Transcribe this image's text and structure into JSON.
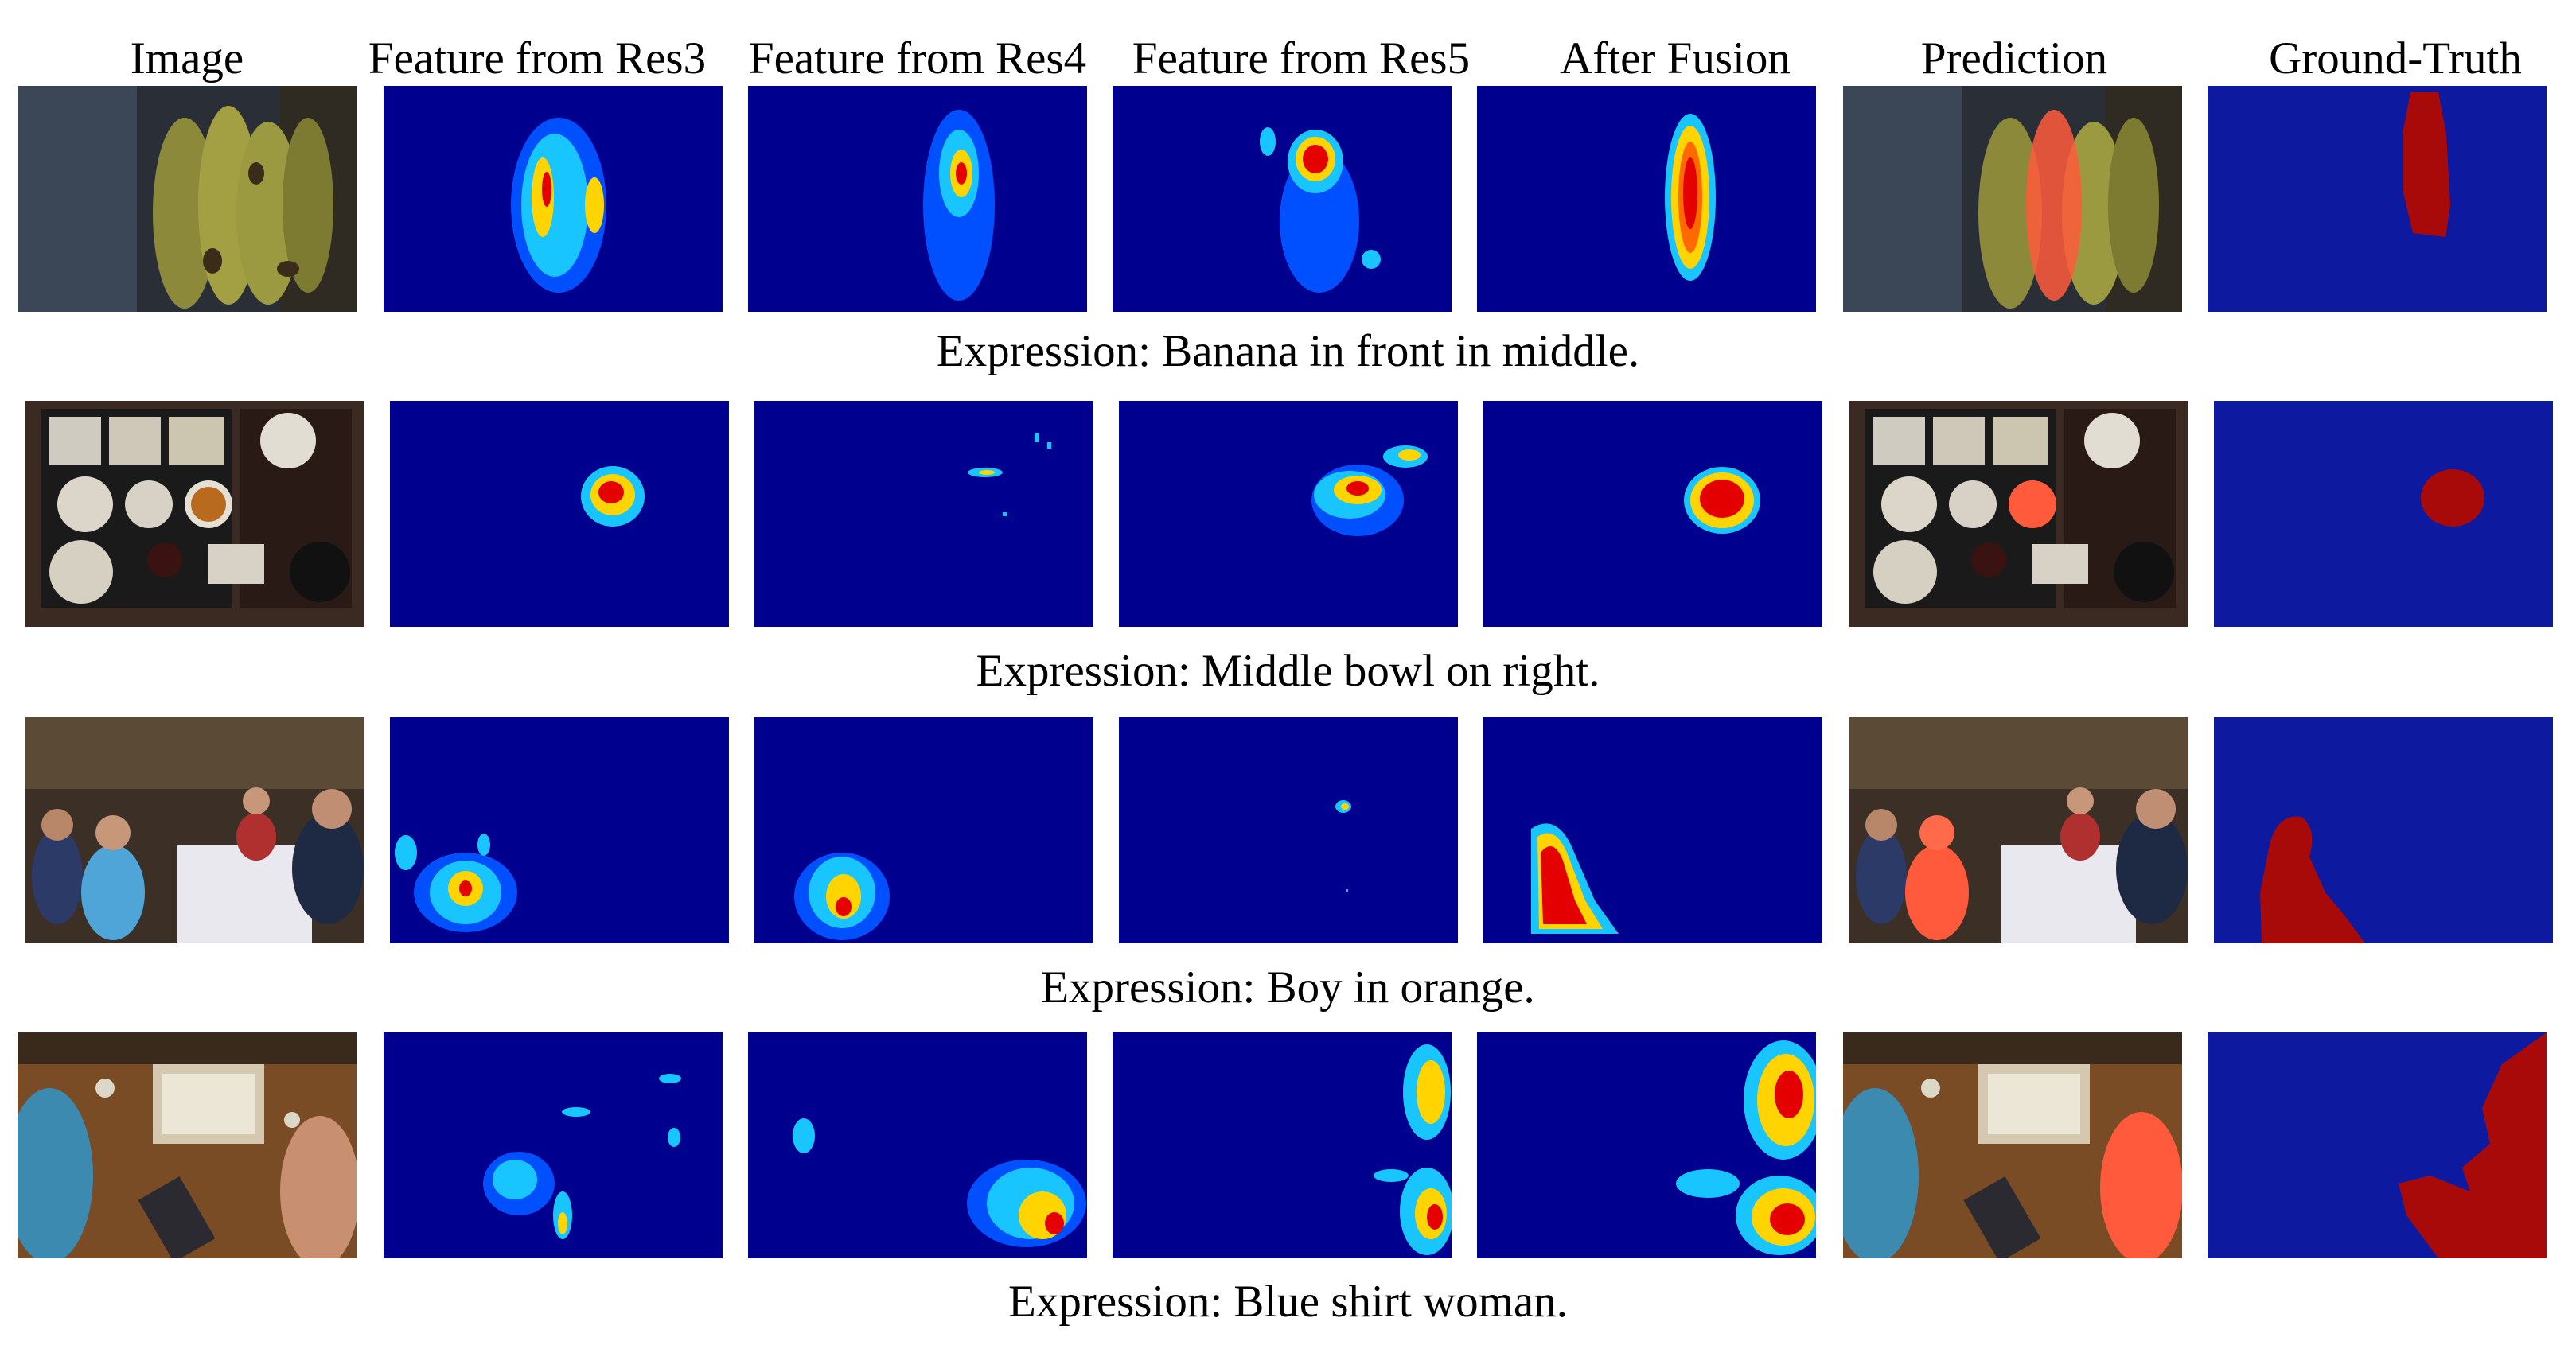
{
  "figure": {
    "column_headers": [
      "Image",
      "Feature from Res3",
      "Feature from Res4",
      "Feature from Res5",
      "After Fusion",
      "Prediction",
      "Ground-Truth"
    ],
    "rows": [
      {
        "expression": "Expression: Banana in front in middle.",
        "scene": "bananas",
        "res3_level": 0.55,
        "res4_level": 0.75,
        "res5_level": 0.85,
        "fusion_level": 0.9
      },
      {
        "expression": "Expression: Middle bowl on right.",
        "scene": "food-tray",
        "res3_level": 0.85,
        "res4_level": 0.35,
        "res5_level": 0.8,
        "fusion_level": 0.9
      },
      {
        "expression": "Expression: Boy in orange.",
        "scene": "restaurant-group",
        "res3_level": 0.7,
        "res4_level": 0.8,
        "res5_level": 0.3,
        "fusion_level": 0.9
      },
      {
        "expression": "Expression: Blue shirt woman.",
        "scene": "board-game-table",
        "res3_level": 0.75,
        "res4_level": 0.85,
        "res5_level": 0.8,
        "fusion_level": 0.9
      }
    ],
    "colors": {
      "heatmap_background": "#00008f",
      "heatmap_hot": "#e50000",
      "heatmap_warm": "#ffd400",
      "heatmap_mid": "#19c5ff",
      "prediction_overlay": "#ff5a3c",
      "ground_truth_background": "#0d1aa0",
      "ground_truth_mask": "#a80a0a"
    }
  }
}
